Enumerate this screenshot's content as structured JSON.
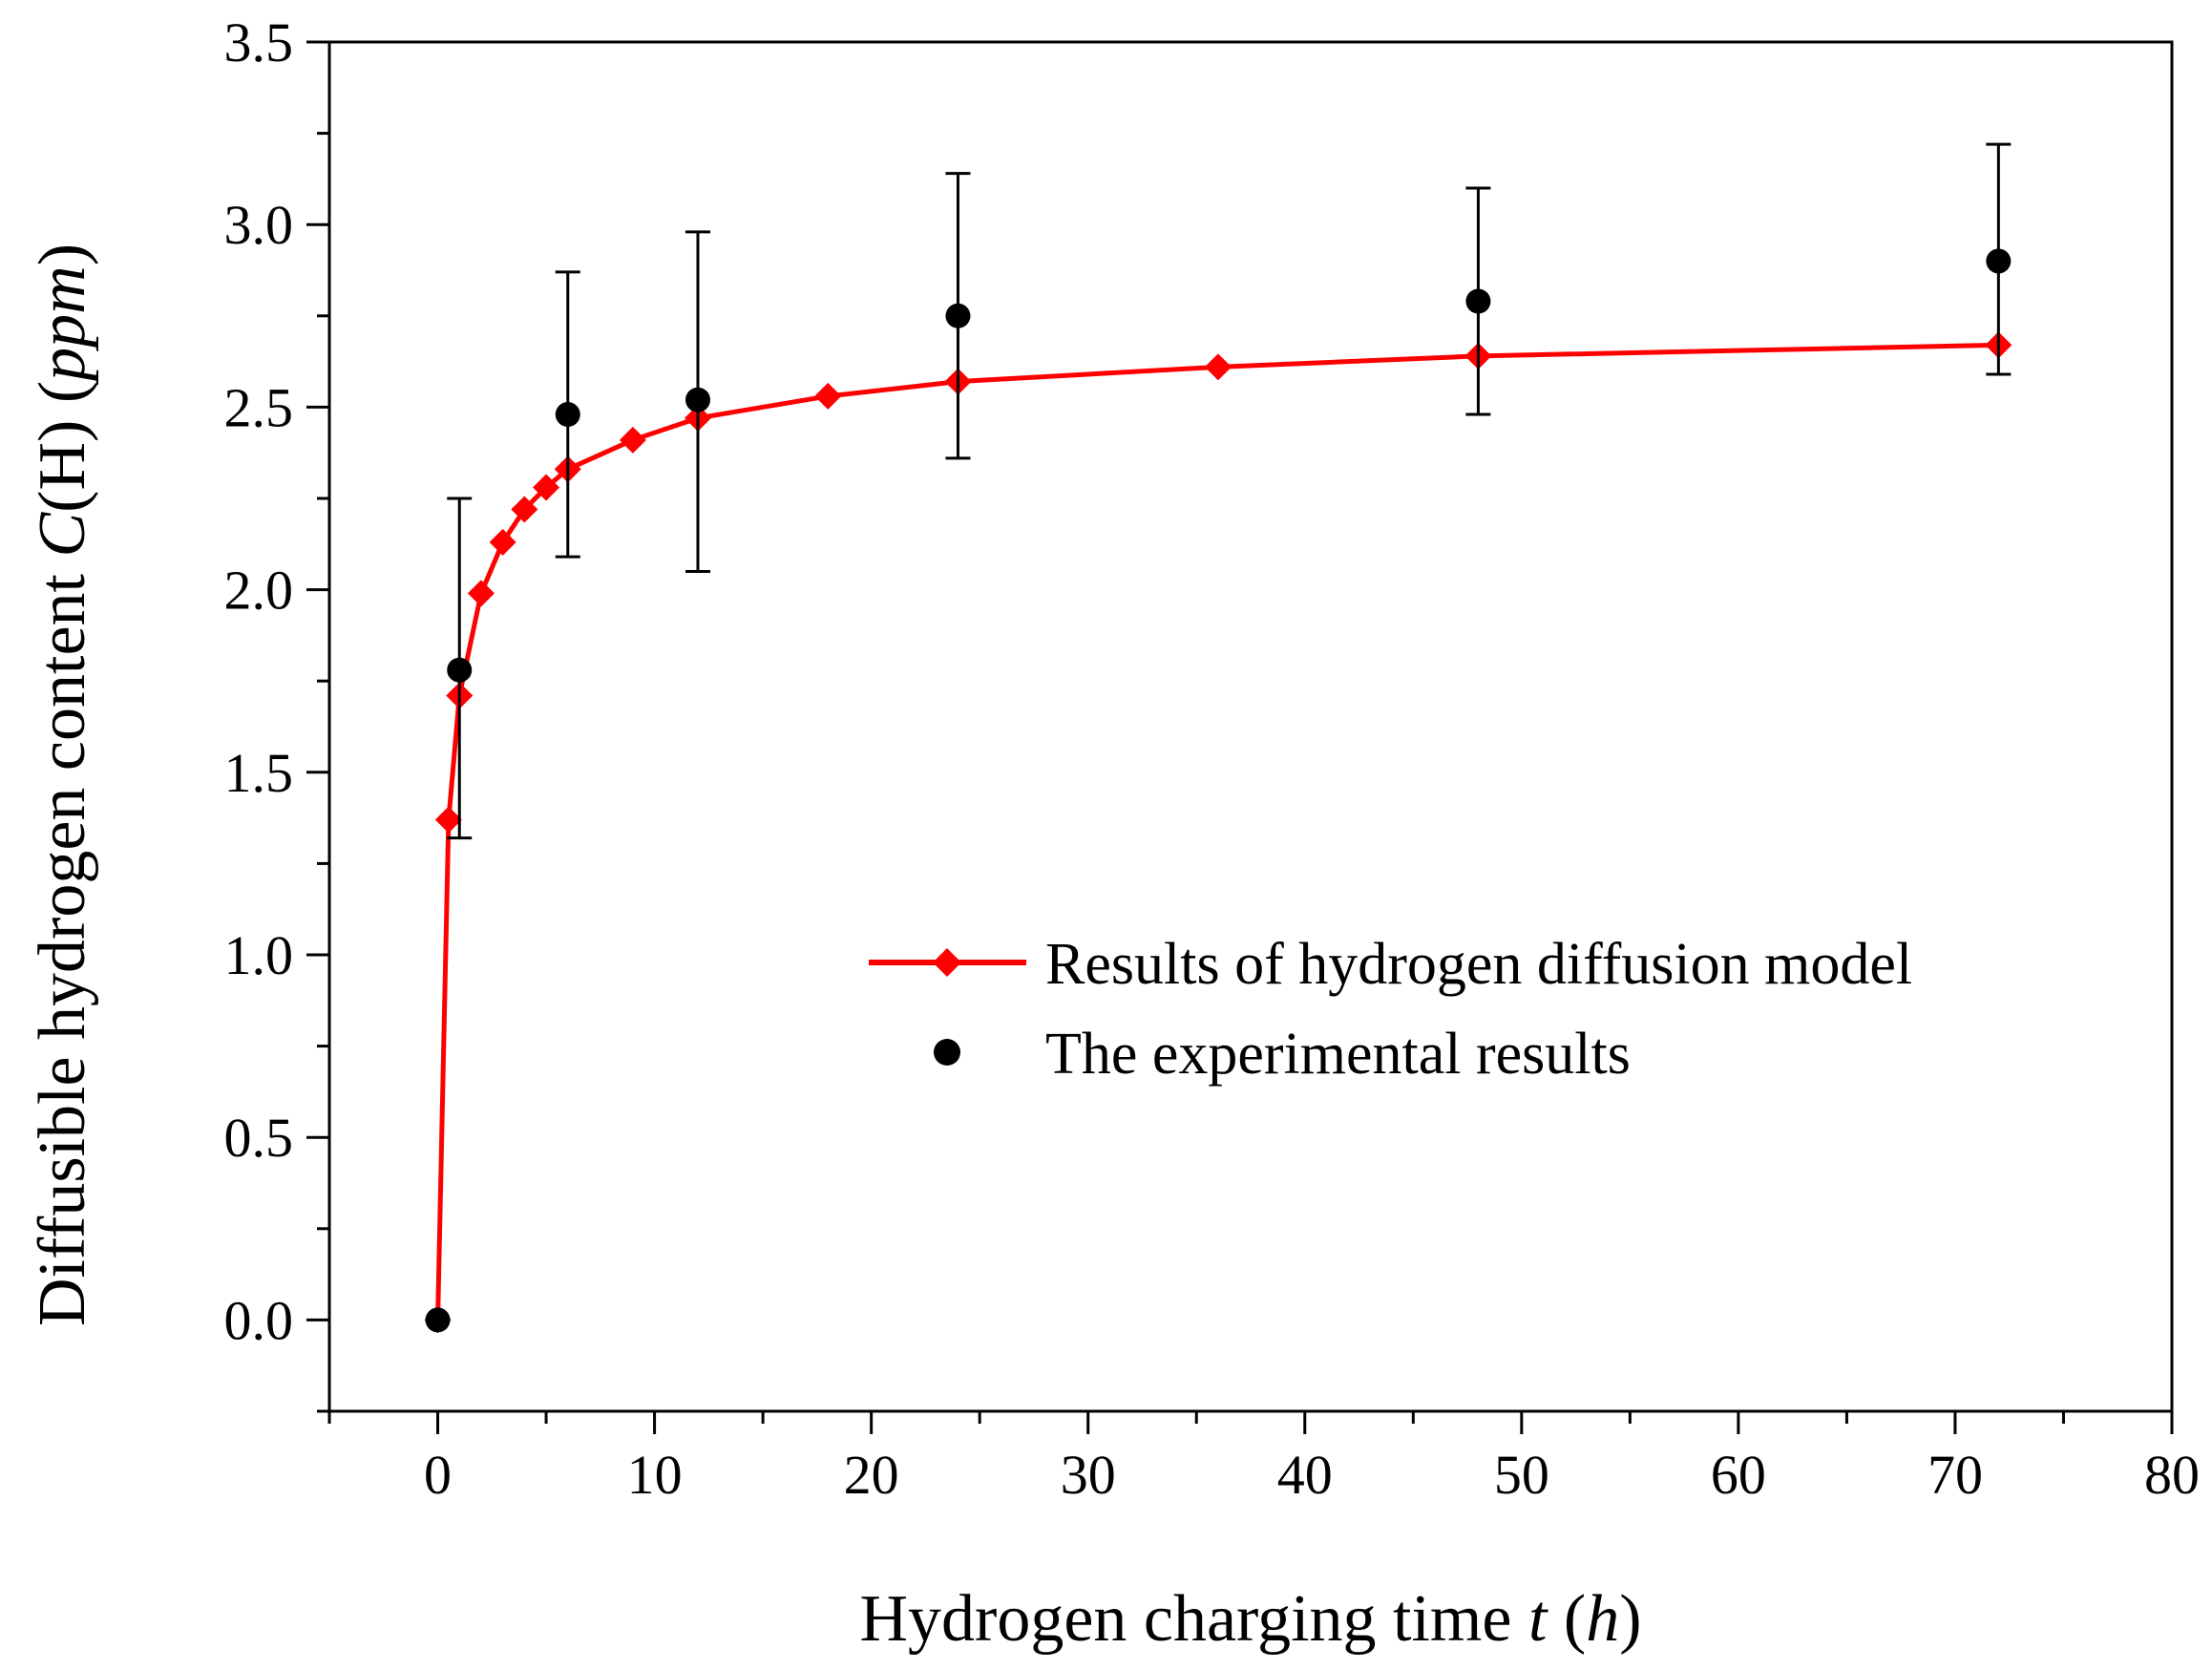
{
  "chart_data": {
    "type": "line",
    "title": "",
    "xlabel": {
      "main": "Hydrogen charging time ",
      "var": "t",
      "unit_open": " (",
      "unit": "h",
      "unit_close": ")"
    },
    "ylabel": {
      "main": "Diffusible hydrogen content ",
      "var": "C",
      "sym": "(H)  (",
      "unit": "ppm",
      "close": ")"
    },
    "xlim": [
      -5,
      80
    ],
    "ylim": [
      -0.25,
      3.5
    ],
    "x_ticks": [
      "0",
      "10",
      "20",
      "30",
      "40",
      "50",
      "60",
      "70",
      "80"
    ],
    "y_ticks": [
      "0.0",
      "0.5",
      "1.0",
      "1.5",
      "2.0",
      "2.5",
      "3.0",
      "3.5"
    ],
    "grid": false,
    "legend_position": "center-right",
    "series": [
      {
        "name": "Results of hydrogen diffusion model",
        "marker": "diamond",
        "color": "#ff0000",
        "x": [
          0,
          0.5,
          1,
          2,
          3,
          4,
          5,
          6,
          9,
          12,
          18,
          24,
          36,
          48,
          72
        ],
        "y": [
          0.0,
          1.37,
          1.71,
          1.99,
          2.13,
          2.22,
          2.28,
          2.33,
          2.41,
          2.47,
          2.53,
          2.57,
          2.61,
          2.64,
          2.67
        ]
      },
      {
        "name": "The experimental results",
        "marker": "circle",
        "color": "#000000",
        "x": [
          0,
          1,
          6,
          12,
          24,
          48,
          72
        ],
        "y": [
          0.0,
          1.78,
          2.48,
          2.52,
          2.75,
          2.79,
          2.9
        ],
        "error_low": [
          0.0,
          1.32,
          2.09,
          2.05,
          2.36,
          2.48,
          2.59
        ],
        "error_high": [
          0.0,
          2.25,
          2.87,
          2.98,
          3.14,
          3.1,
          3.22
        ]
      }
    ]
  }
}
